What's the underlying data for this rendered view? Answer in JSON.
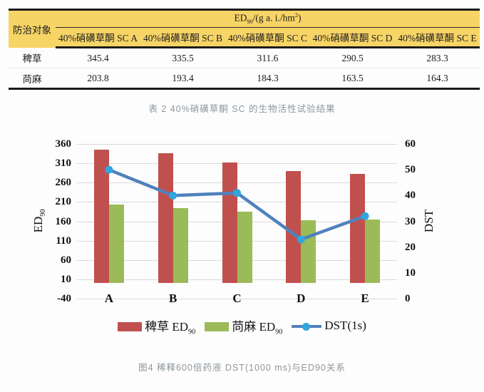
{
  "table": {
    "corner_header": "防治对象",
    "group_header": {
      "base": "ED",
      "sub": "90",
      "mid": "/(g a. i./hm",
      "sup": "2",
      "close": ")"
    },
    "columns": [
      "40%硝磺草酮 SC A",
      "40%硝磺草酮 SC B",
      "40%硝磺草酮 SC C",
      "40%硝磺草酮 SC D",
      "40%硝磺草酮 SC E"
    ],
    "rows": [
      {
        "label": "稗草",
        "values": [
          "345.4",
          "335.5",
          "311.6",
          "290.5",
          "283.3"
        ]
      },
      {
        "label": "苘麻",
        "values": [
          "203.8",
          "193.4",
          "184.3",
          "163.5",
          "164.3"
        ]
      }
    ],
    "caption": "表 2  40%硝磺草酮 SC 的生物活性试验结果",
    "header_bg": "#F7D466"
  },
  "chart_data": {
    "type": "bar",
    "subtype": "combo-bar-line",
    "categories": [
      "A",
      "B",
      "C",
      "D",
      "E"
    ],
    "series": [
      {
        "name": "稗草 ED90",
        "type": "bar",
        "axis": "left",
        "color": "#C0504D",
        "values": [
          345.4,
          335.5,
          311.6,
          290.5,
          283.3
        ]
      },
      {
        "name": "苘麻 ED90",
        "type": "bar",
        "axis": "left",
        "color": "#9BBB59",
        "values": [
          203.8,
          193.4,
          184.3,
          163.5,
          164.3
        ]
      },
      {
        "name": "DST(1s)",
        "type": "line",
        "axis": "right",
        "color": "#4F81BD",
        "marker_color": "#31A5DC",
        "values": [
          50,
          40,
          41,
          23,
          32
        ]
      }
    ],
    "left_axis": {
      "title": "ED90",
      "title_base": "ED",
      "title_sub": "90",
      "min": -40,
      "max": 360,
      "step": 50,
      "ticks": [
        "360",
        "310",
        "260",
        "210",
        "160",
        "110",
        "60",
        "10",
        "-40"
      ]
    },
    "right_axis": {
      "title": "DST",
      "min": 0,
      "max": 60,
      "step": 10,
      "ticks": [
        "60",
        "50",
        "40",
        "30",
        "20",
        "10",
        "0"
      ]
    },
    "bar_baseline": 0,
    "grid": true,
    "gridline_color": "#D9D9D9",
    "legend_position": "bottom"
  },
  "legend": {
    "items": [
      {
        "text": "稗草 ED",
        "sub": "90",
        "swatch": "bar",
        "color": "#C0504D"
      },
      {
        "text": "苘麻 ED",
        "sub": "90",
        "swatch": "bar",
        "color": "#9BBB59"
      },
      {
        "text": "DST(1s)",
        "sub": "",
        "swatch": "line",
        "color": "#4F81BD",
        "marker_color": "#31A5DC"
      }
    ]
  },
  "figure_caption": "图4  稀释600倍药液 DST(1000 ms)与ED90关系"
}
